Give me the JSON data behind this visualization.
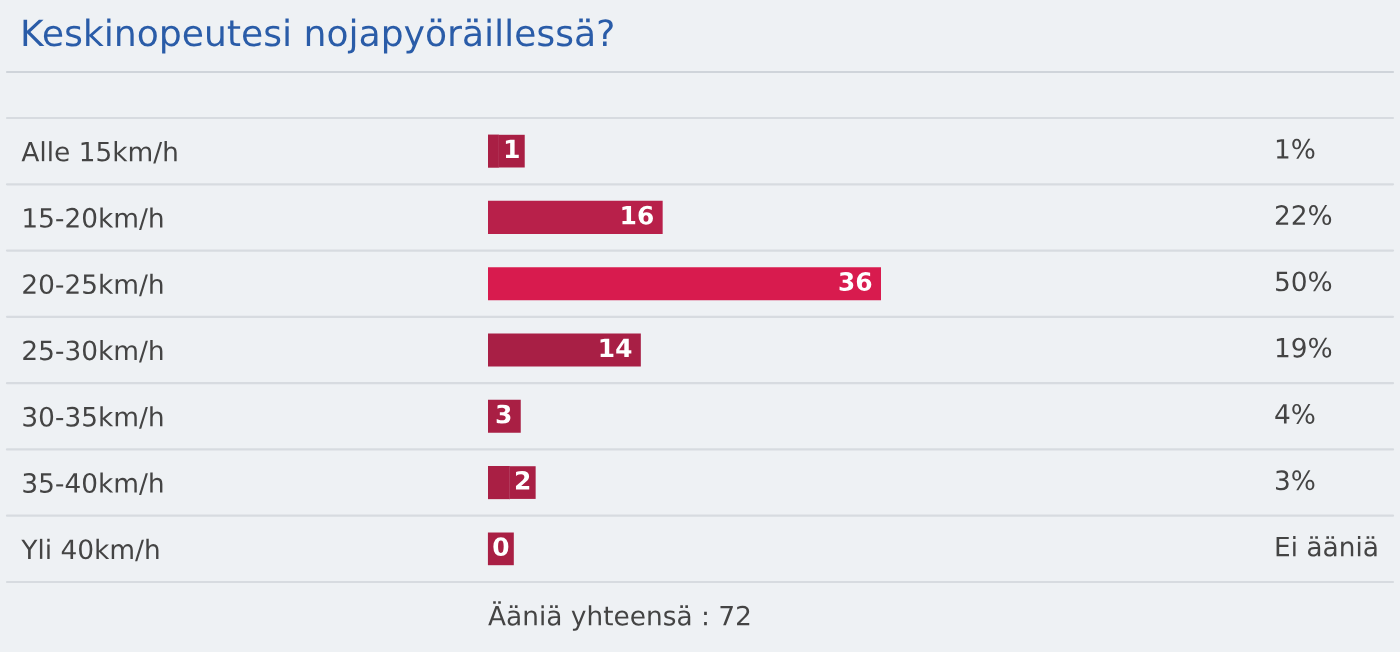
{
  "chart_data": {
    "type": "bar",
    "orientation": "horizontal",
    "title": "Keskinopeutesi nojapyöräillessä?",
    "categories": [
      "Alle 15km/h",
      "15-20km/h",
      "20-25km/h",
      "25-30km/h",
      "30-35km/h",
      "35-40km/h",
      "Yli 40km/h"
    ],
    "values": [
      1,
      16,
      36,
      14,
      3,
      2,
      0
    ],
    "colors": [
      "#a91f44",
      "#b8204a",
      "#d81b4e",
      "#a81f45",
      "#a91f44",
      "#a91f44",
      "#a91f44"
    ],
    "data_labels": true,
    "grid": "y",
    "annotations": [
      "1%",
      "22%",
      "50%",
      "19%",
      "4%",
      "3%",
      "Ei ääniä",
      "Ääniä yhteensä : 72"
    ]
  }
}
